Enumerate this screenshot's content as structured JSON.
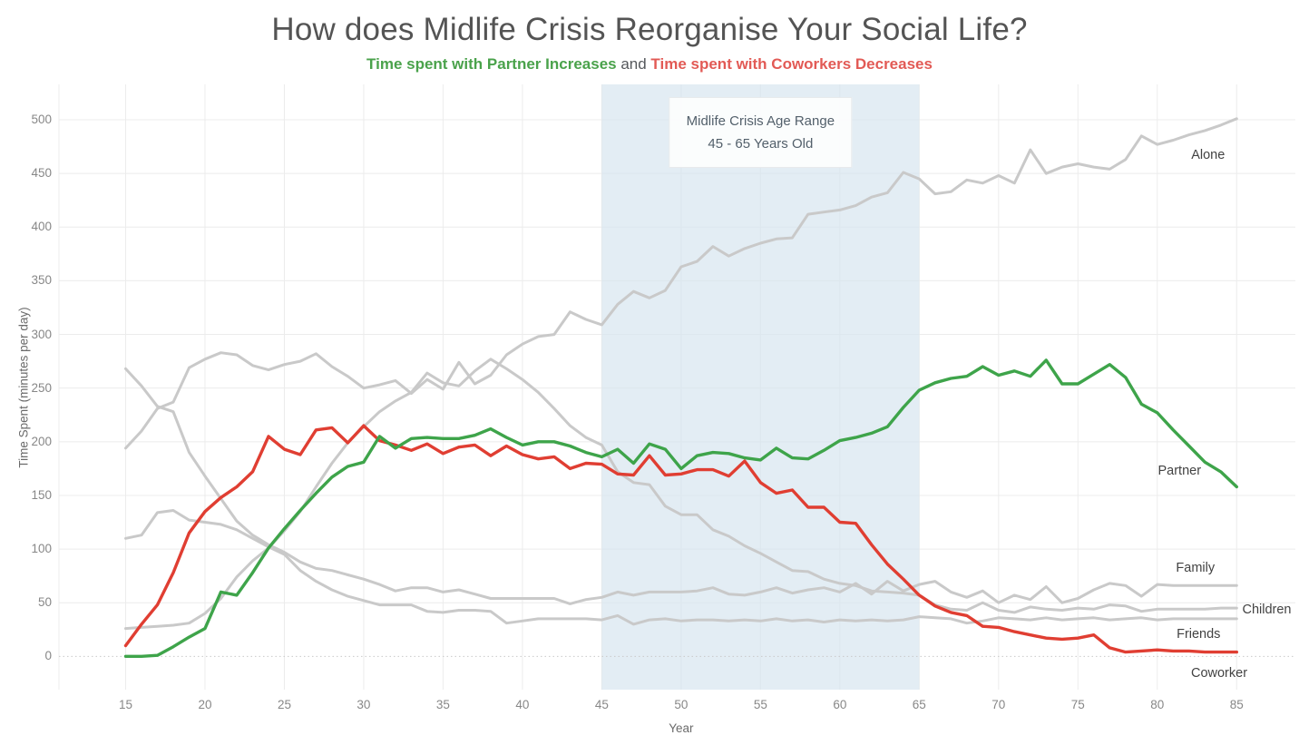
{
  "title": "How does Midlife Crisis Reorganise Your Social Life?",
  "subtitle": {
    "increase_text": "Time spent with Partner Increases",
    "and_text": " and ",
    "decrease_text": "Time spent with Coworkers Decreases"
  },
  "annotation": {
    "line1": "Midlife Crisis Age Range",
    "line2": "45 - 65 Years Old",
    "band_start": 45,
    "band_end": 65
  },
  "colors": {
    "green_line": "#3ea44a",
    "red_line": "#e03e32",
    "gray_line": "#c9c9c9",
    "subtitle_green": "#4aa24b",
    "subtitle_red": "#e25a55",
    "subtitle_gray": "#55585c",
    "band_fill": "rgba(213,228,239,0.66)",
    "gridline": "#ececec",
    "zero_line": "#c9c9c9",
    "title_text": "#545454",
    "tick_text": "#878787",
    "label_text": "#424242"
  },
  "chart_data": {
    "type": "line",
    "title": "How does Midlife Crisis Reorganise Your Social Life?",
    "xlabel": "Year",
    "ylabel": "Time Spent (minutes per day)",
    "x_ticks": [
      15,
      20,
      25,
      30,
      35,
      40,
      45,
      50,
      55,
      60,
      65,
      70,
      75,
      80,
      85
    ],
    "y_ticks": [
      0,
      50,
      100,
      150,
      200,
      250,
      300,
      350,
      400,
      450,
      500
    ],
    "xlim": [
      10.8,
      88.7
    ],
    "ylim": [
      -31,
      533
    ],
    "grid": true,
    "highlight_band": {
      "x_start": 45,
      "x_end": 65
    },
    "x": [
      15,
      16,
      17,
      18,
      19,
      20,
      21,
      22,
      23,
      24,
      25,
      26,
      27,
      28,
      29,
      30,
      31,
      32,
      33,
      34,
      35,
      36,
      37,
      38,
      39,
      40,
      41,
      42,
      43,
      44,
      45,
      46,
      47,
      48,
      49,
      50,
      51,
      52,
      53,
      54,
      55,
      56,
      57,
      58,
      59,
      60,
      61,
      62,
      63,
      64,
      65,
      66,
      67,
      68,
      69,
      70,
      71,
      72,
      73,
      74,
      75,
      76,
      77,
      78,
      79,
      80,
      81,
      82,
      83,
      84,
      85
    ],
    "series": [
      {
        "name": "Alone",
        "color_key": "gray_line",
        "label": {
          "x": 83.2,
          "y": 467
        },
        "values": [
          194,
          210,
          231,
          237,
          269,
          277,
          283,
          281,
          271,
          267,
          272,
          275,
          282,
          270,
          261,
          250,
          253,
          257,
          245,
          258,
          249,
          274,
          254,
          262,
          281,
          291,
          298,
          300,
          321,
          314,
          309,
          328,
          340,
          334,
          341,
          363,
          368,
          382,
          373,
          380,
          385,
          389,
          390,
          412,
          414,
          416,
          420,
          428,
          432,
          451,
          445,
          431,
          433,
          444,
          441,
          448,
          441,
          472,
          450,
          456,
          459,
          456,
          454,
          463,
          485,
          477,
          481,
          486,
          490,
          495,
          501
        ]
      },
      {
        "name": "Family",
        "color_key": "gray_line",
        "label": {
          "x": 82.4,
          "y": 82
        },
        "values": [
          268,
          252,
          233,
          228,
          190,
          168,
          147,
          126,
          113,
          104,
          97,
          88,
          82,
          80,
          76,
          72,
          67,
          61,
          64,
          64,
          60,
          62,
          58,
          54,
          54,
          54,
          54,
          54,
          49,
          53,
          55,
          60,
          57,
          60,
          60,
          60,
          61,
          64,
          58,
          57,
          60,
          64,
          59,
          62,
          64,
          60,
          68,
          58,
          70,
          61,
          67,
          70,
          60,
          55,
          61,
          50,
          57,
          53,
          65,
          50,
          54,
          62,
          68,
          66,
          56,
          67,
          66,
          66,
          66,
          66,
          66
        ]
      },
      {
        "name": "Children",
        "color_key": "gray_line",
        "label": {
          "x": 86.9,
          "y": 43
        },
        "values": [
          26,
          27,
          28,
          29,
          31,
          40,
          54,
          74,
          89,
          101,
          117,
          135,
          158,
          180,
          199,
          214,
          228,
          238,
          246,
          264,
          255,
          252,
          266,
          277,
          268,
          258,
          246,
          231,
          215,
          204,
          197,
          172,
          162,
          160,
          140,
          132,
          132,
          118,
          112,
          103,
          96,
          88,
          80,
          79,
          72,
          68,
          66,
          61,
          60,
          59,
          57,
          48,
          44,
          43,
          50,
          43,
          41,
          46,
          44,
          43,
          45,
          44,
          48,
          47,
          42,
          44,
          44,
          44,
          44,
          45,
          45
        ]
      },
      {
        "name": "Friends",
        "color_key": "gray_line",
        "label": {
          "x": 82.6,
          "y": 21
        },
        "values": [
          110,
          113,
          134,
          136,
          127,
          125,
          123,
          118,
          110,
          102,
          95,
          80,
          70,
          62,
          56,
          52,
          48,
          48,
          48,
          42,
          41,
          43,
          43,
          42,
          31,
          33,
          35,
          35,
          35,
          35,
          34,
          38,
          30,
          34,
          35,
          33,
          34,
          34,
          33,
          34,
          33,
          35,
          33,
          34,
          32,
          34,
          33,
          34,
          33,
          34,
          37,
          36,
          35,
          31,
          33,
          36,
          35,
          34,
          36,
          34,
          35,
          36,
          34,
          35,
          36,
          34,
          35,
          35,
          35,
          35,
          35
        ]
      },
      {
        "name": "Coworker",
        "color_key": "red_line",
        "label": {
          "x": 83.9,
          "y": -16
        },
        "values": [
          10,
          30,
          48,
          78,
          115,
          135,
          148,
          158,
          172,
          205,
          193,
          188,
          211,
          213,
          199,
          215,
          201,
          197,
          192,
          198,
          189,
          195,
          197,
          187,
          196,
          188,
          184,
          186,
          175,
          180,
          179,
          170,
          169,
          187,
          169,
          170,
          174,
          174,
          168,
          182,
          162,
          152,
          155,
          139,
          139,
          125,
          124,
          104,
          86,
          72,
          57,
          47,
          41,
          38,
          28,
          27,
          23,
          20,
          17,
          16,
          17,
          20,
          8,
          4,
          5,
          6,
          5,
          5,
          4,
          4,
          4
        ]
      },
      {
        "name": "Partner",
        "color_key": "green_line",
        "label": {
          "x": 81.4,
          "y": 173
        },
        "values": [
          0,
          0,
          1,
          9,
          18,
          26,
          60,
          57,
          78,
          101,
          119,
          136,
          152,
          167,
          177,
          181,
          205,
          194,
          203,
          204,
          203,
          203,
          206,
          212,
          204,
          197,
          200,
          200,
          196,
          190,
          186,
          193,
          180,
          198,
          193,
          175,
          187,
          190,
          189,
          185,
          183,
          194,
          185,
          184,
          192,
          201,
          204,
          208,
          214,
          232,
          248,
          255,
          259,
          261,
          270,
          262,
          266,
          261,
          276,
          254,
          254,
          263,
          272,
          260,
          235,
          227,
          211,
          196,
          181,
          172,
          158
        ]
      }
    ]
  }
}
